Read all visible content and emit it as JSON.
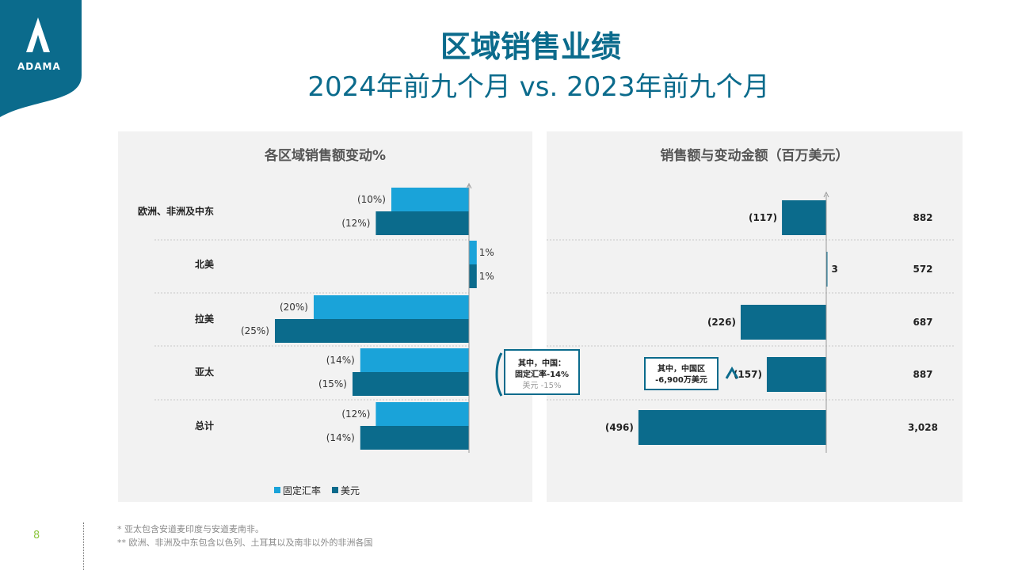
{
  "logo": {
    "text": "ADAMA"
  },
  "title": "区域销售业绩",
  "subtitle": "2024年前九个月 vs. 2023年前九个月",
  "colors": {
    "fixed_fx": "#1aa3d9",
    "usd": "#0b6b8c",
    "brand": "#0b6b8c"
  },
  "chart_data": [
    {
      "type": "bar",
      "orientation": "horizontal",
      "title": "各区域销售额变动%",
      "categories": [
        "欧洲、非洲及中东",
        "北美",
        "拉美",
        "亚太",
        "总计"
      ],
      "series": [
        {
          "name": "固定汇率",
          "values": [
            -10,
            1,
            -20,
            -14,
            -12
          ],
          "labels": [
            "(10%)",
            "1%",
            "(20%)",
            "(14%)",
            "(12%)"
          ]
        },
        {
          "name": "美元",
          "values": [
            -12,
            1,
            -25,
            -15,
            -14
          ],
          "labels": [
            "(12%)",
            "1%",
            "(25%)",
            "(15%)",
            "(14%)"
          ]
        }
      ],
      "legend": "bottom",
      "annotation": {
        "line1": "其中，中国：",
        "line2": "固定汇率-14%",
        "line3": "美元 -15%"
      }
    },
    {
      "type": "bar",
      "orientation": "horizontal",
      "title": "销售额与变动金额（百万美元）",
      "categories": [
        "欧洲、非洲及中东",
        "北美",
        "拉美",
        "亚太",
        "总计"
      ],
      "series": [
        {
          "values": [
            -117,
            3,
            -226,
            -157,
            -496
          ],
          "labels": [
            "(117)",
            "3",
            "(226)",
            "(157)",
            "(496)"
          ]
        }
      ],
      "sales": [
        "882",
        "572",
        "687",
        "887",
        "3,028"
      ],
      "annotation": {
        "line1": "其中，中国区",
        "line2": "-6,900万美元"
      }
    }
  ],
  "footer": {
    "page_number": "8",
    "notes": [
      "* 亚太包含安道麦印度与安道麦南非。",
      "** 欧洲、非洲及中东包含以色列、土耳其以及南非以外的非洲各国"
    ]
  }
}
